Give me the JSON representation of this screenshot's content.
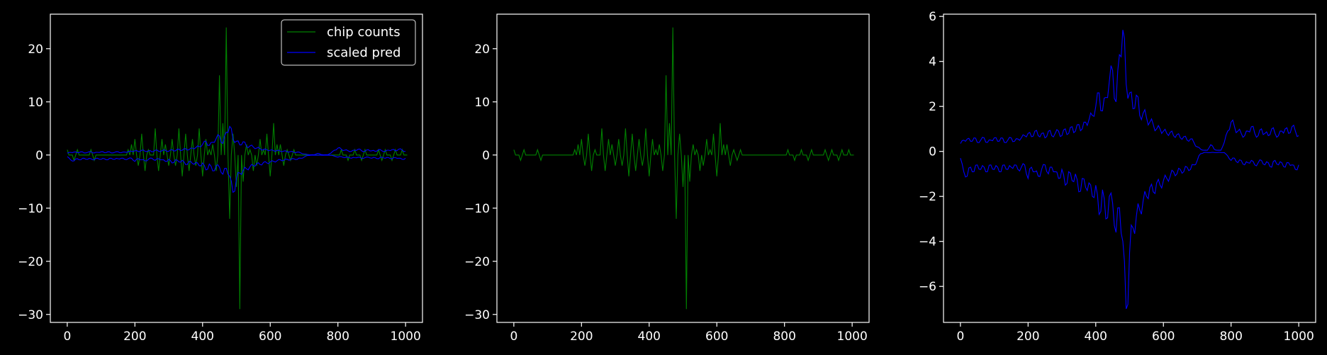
{
  "figure": {
    "background": "#000000",
    "frame_color": "#ffffff",
    "text_color": "#ffffff"
  },
  "chart_data": [
    {
      "type": "line",
      "title": "",
      "xlabel": "",
      "ylabel": "",
      "xlim": [
        -50,
        1050
      ],
      "ylim": [
        -31.5,
        26.5
      ],
      "xticks": [
        0,
        200,
        400,
        600,
        800,
        1000
      ],
      "xtick_labels": [
        "0",
        "200",
        "400",
        "600",
        "800",
        "1000"
      ],
      "yticks": [
        -30,
        -20,
        -10,
        0,
        10,
        20
      ],
      "ytick_labels": [
        "−30",
        "−20",
        "−10",
        "0",
        "10",
        "20"
      ],
      "grid": false,
      "legend": {
        "placement": "top-right",
        "entries": [
          "chip counts",
          "scaled pred"
        ]
      },
      "series": [
        {
          "name": "chip counts",
          "color": "#008000",
          "x_step": 10,
          "values": [
            1,
            0,
            -1,
            1,
            0,
            0,
            0,
            1,
            -1,
            0,
            0,
            0,
            0,
            0,
            0,
            0,
            0,
            0,
            1,
            2,
            3,
            -2,
            4,
            -3,
            1,
            0,
            5,
            -3,
            3,
            2,
            -2,
            3,
            -2,
            5,
            -4,
            4,
            -3,
            3,
            -2,
            5,
            -4,
            3,
            1,
            2,
            -3,
            15,
            6,
            24,
            -12,
            4,
            -6,
            -29,
            -5,
            2,
            1,
            -3,
            -2,
            3,
            1,
            4,
            -4,
            6,
            2,
            2,
            -2,
            1,
            -1,
            1,
            0,
            0,
            0,
            0,
            0,
            0,
            0,
            0,
            0,
            0,
            0,
            0,
            0,
            1,
            0,
            -1,
            0,
            1,
            0,
            -1,
            1,
            0,
            0,
            0,
            1,
            -1,
            1,
            0,
            -1,
            1,
            0,
            1,
            0
          ]
        },
        {
          "name": "scaled pred",
          "color": "#0000ff",
          "x_step": 10,
          "upper": [
            0.35,
            0.5,
            0.55,
            0.45,
            0.6,
            0.4,
            0.5,
            0.6,
            0.4,
            0.5,
            0.6,
            0.45,
            0.6,
            0.4,
            0.5,
            0.6,
            0.45,
            0.55,
            0.6,
            0.7,
            0.8,
            0.65,
            0.9,
            0.7,
            0.8,
            0.6,
            0.9,
            0.7,
            0.8,
            0.9,
            0.7,
            1.0,
            0.8,
            1.1,
            0.9,
            1.2,
            1.0,
            1.3,
            1.4,
            1.6,
            2.0,
            2.6,
            1.8,
            2.4,
            3.1,
            3.6,
            2.2,
            4.3,
            5.4,
            3.0,
            2.6,
            1.9,
            2.5,
            1.6,
            1.7,
            1.5,
            1.3,
            1.2,
            1.0,
            1.0,
            0.9,
            0.8,
            0.85,
            0.7,
            0.75,
            0.6,
            0.65,
            0.5,
            0.55,
            0.4,
            0.2,
            0.1,
            0.05,
            0.05,
            0.3,
            0.1,
            0.05,
            0.05,
            0.4,
            0.9,
            1.3,
            1.1,
            0.9,
            0.8,
            0.7,
            0.9,
            1.1,
            0.8,
            0.7,
            1.0,
            0.8,
            0.7,
            1.0,
            0.8,
            0.7,
            0.9,
            1.0,
            0.8,
            1.1,
            0.9,
            0.7
          ],
          "lower": [
            -0.3,
            -0.9,
            -1.1,
            -0.7,
            -0.9,
            -0.6,
            -0.8,
            -0.7,
            -0.9,
            -0.6,
            -0.8,
            -0.7,
            -0.9,
            -0.6,
            -0.8,
            -0.7,
            -0.6,
            -0.8,
            -0.7,
            -0.6,
            -1.2,
            -0.7,
            -0.9,
            -1.1,
            -0.8,
            -0.6,
            -1.0,
            -0.7,
            -0.9,
            -1.2,
            -0.8,
            -1.5,
            -0.9,
            -1.3,
            -1.0,
            -1.8,
            -1.2,
            -1.6,
            -1.4,
            -2.0,
            -1.5,
            -2.8,
            -1.7,
            -3.0,
            -2.0,
            -2.3,
            -3.6,
            -2.5,
            -4.0,
            -7.0,
            -4.5,
            -3.4,
            -2.9,
            -2.6,
            -2.2,
            -2.0,
            -1.6,
            -1.8,
            -1.4,
            -1.5,
            -1.3,
            -1.2,
            -1.1,
            -0.9,
            -1.0,
            -0.8,
            -0.9,
            -0.7,
            -0.8,
            -0.6,
            -0.4,
            -0.1,
            -0.05,
            -0.05,
            -0.05,
            -0.05,
            -0.05,
            -0.05,
            -0.05,
            -0.2,
            -0.4,
            -0.3,
            -0.5,
            -0.4,
            -0.6,
            -0.5,
            -0.4,
            -0.6,
            -0.5,
            -0.4,
            -0.6,
            -0.5,
            -0.7,
            -0.4,
            -0.6,
            -0.5,
            -0.7,
            -0.5,
            -0.6,
            -0.8,
            -0.6
          ]
        }
      ]
    },
    {
      "type": "line",
      "title": "",
      "xlabel": "",
      "ylabel": "",
      "xlim": [
        -50,
        1050
      ],
      "ylim": [
        -31.5,
        26.5
      ],
      "xticks": [
        0,
        200,
        400,
        600,
        800,
        1000
      ],
      "xtick_labels": [
        "0",
        "200",
        "400",
        "600",
        "800",
        "1000"
      ],
      "yticks": [
        -30,
        -20,
        -10,
        0,
        10,
        20
      ],
      "ytick_labels": [
        "−30",
        "−20",
        "−10",
        "0",
        "10",
        "20"
      ],
      "grid": false,
      "series": [
        {
          "color": "#008000",
          "x_step": 10,
          "values": [
            1,
            0,
            -1,
            1,
            0,
            0,
            0,
            1,
            -1,
            0,
            0,
            0,
            0,
            0,
            0,
            0,
            0,
            0,
            1,
            2,
            3,
            -2,
            4,
            -3,
            1,
            0,
            5,
            -3,
            3,
            2,
            -2,
            3,
            -2,
            5,
            -4,
            4,
            -3,
            3,
            -2,
            5,
            -4,
            3,
            1,
            2,
            -3,
            15,
            6,
            24,
            -12,
            4,
            -6,
            -29,
            -5,
            2,
            1,
            -3,
            -2,
            3,
            1,
            4,
            -4,
            6,
            2,
            2,
            -2,
            1,
            -1,
            1,
            0,
            0,
            0,
            0,
            0,
            0,
            0,
            0,
            0,
            0,
            0,
            0,
            0,
            1,
            0,
            -1,
            0,
            1,
            0,
            -1,
            1,
            0,
            0,
            0,
            1,
            -1,
            1,
            0,
            -1,
            1,
            0,
            1,
            0
          ]
        }
      ]
    },
    {
      "type": "line",
      "title": "",
      "xlabel": "",
      "ylabel": "",
      "xlim": [
        -50,
        1050
      ],
      "ylim": [
        -7.6,
        6.1
      ],
      "xticks": [
        0,
        200,
        400,
        600,
        800,
        1000
      ],
      "xtick_labels": [
        "0",
        "200",
        "400",
        "600",
        "800",
        "1000"
      ],
      "yticks": [
        -6,
        -4,
        -2,
        0,
        2,
        4,
        6
      ],
      "ytick_labels": [
        "−6",
        "−4",
        "−2",
        "0",
        "2",
        "4",
        "6"
      ],
      "grid": false,
      "series": [
        {
          "color": "#0000ff",
          "x_step": 10,
          "upper": [
            0.35,
            0.5,
            0.55,
            0.45,
            0.6,
            0.4,
            0.5,
            0.6,
            0.4,
            0.5,
            0.6,
            0.45,
            0.6,
            0.4,
            0.5,
            0.6,
            0.45,
            0.55,
            0.6,
            0.7,
            0.8,
            0.65,
            0.9,
            0.7,
            0.8,
            0.6,
            0.9,
            0.7,
            0.8,
            0.9,
            0.7,
            1.0,
            0.8,
            1.1,
            0.9,
            1.2,
            1.0,
            1.3,
            1.4,
            1.6,
            2.0,
            2.6,
            1.8,
            2.4,
            3.1,
            3.6,
            2.2,
            4.3,
            5.4,
            3.0,
            2.6,
            1.9,
            2.5,
            1.6,
            1.7,
            1.5,
            1.3,
            1.2,
            1.0,
            1.0,
            0.9,
            0.8,
            0.85,
            0.7,
            0.75,
            0.6,
            0.65,
            0.5,
            0.55,
            0.4,
            0.2,
            0.1,
            0.05,
            0.05,
            0.3,
            0.1,
            0.05,
            0.05,
            0.4,
            0.9,
            1.3,
            1.1,
            0.9,
            0.8,
            0.7,
            0.9,
            1.1,
            0.8,
            0.7,
            1.0,
            0.8,
            0.7,
            1.0,
            0.8,
            0.7,
            0.9,
            1.0,
            0.8,
            1.1,
            0.9,
            0.7
          ],
          "lower": [
            -0.3,
            -0.9,
            -1.1,
            -0.7,
            -0.9,
            -0.6,
            -0.8,
            -0.7,
            -0.9,
            -0.6,
            -0.8,
            -0.7,
            -0.9,
            -0.6,
            -0.8,
            -0.7,
            -0.6,
            -0.8,
            -0.7,
            -0.6,
            -1.2,
            -0.7,
            -0.9,
            -1.1,
            -0.8,
            -0.6,
            -1.0,
            -0.7,
            -0.9,
            -1.2,
            -0.8,
            -1.5,
            -0.9,
            -1.3,
            -1.0,
            -1.8,
            -1.2,
            -1.6,
            -1.4,
            -2.0,
            -1.5,
            -2.8,
            -1.7,
            -3.0,
            -2.0,
            -2.3,
            -3.6,
            -2.5,
            -4.0,
            -7.0,
            -4.5,
            -3.4,
            -2.9,
            -2.6,
            -2.2,
            -2.0,
            -1.6,
            -1.8,
            -1.4,
            -1.5,
            -1.3,
            -1.2,
            -1.1,
            -0.9,
            -1.0,
            -0.8,
            -0.9,
            -0.7,
            -0.8,
            -0.6,
            -0.4,
            -0.1,
            -0.05,
            -0.05,
            -0.05,
            -0.05,
            -0.05,
            -0.05,
            -0.05,
            -0.2,
            -0.4,
            -0.3,
            -0.5,
            -0.4,
            -0.6,
            -0.5,
            -0.4,
            -0.6,
            -0.5,
            -0.4,
            -0.6,
            -0.5,
            -0.7,
            -0.4,
            -0.6,
            -0.5,
            -0.7,
            -0.5,
            -0.6,
            -0.8,
            -0.6
          ]
        }
      ]
    }
  ]
}
